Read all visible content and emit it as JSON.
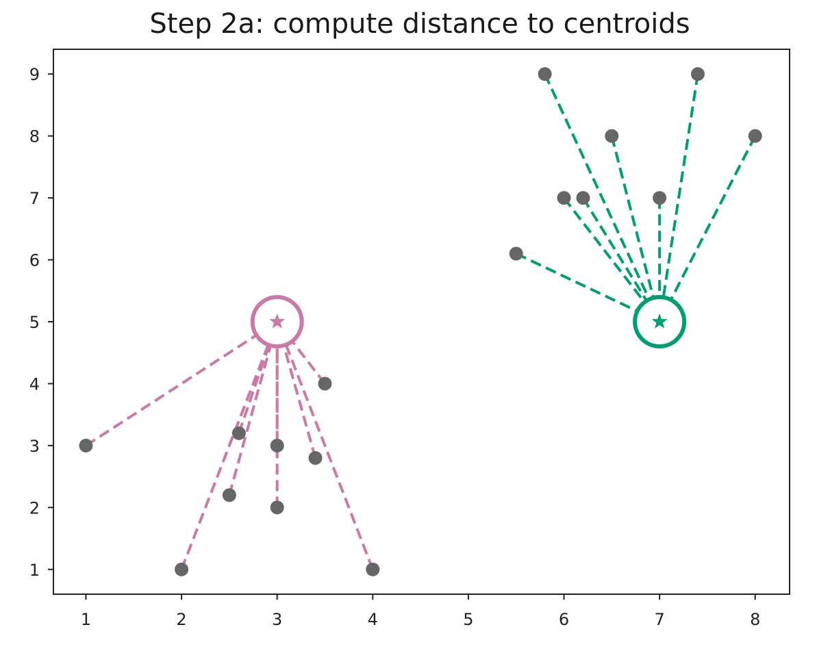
{
  "chart_data": {
    "type": "scatter",
    "title": "Step 2a: compute distance to centroids",
    "xlabel": "",
    "ylabel": "",
    "xlim": [
      0.66,
      8.36
    ],
    "ylim": [
      0.6,
      9.4
    ],
    "xticks": [
      1,
      2,
      3,
      4,
      5,
      6,
      7,
      8
    ],
    "yticks": [
      1,
      2,
      3,
      4,
      5,
      6,
      7,
      8,
      9
    ],
    "grid": false,
    "points": [
      {
        "x": 1,
        "y": 3,
        "cluster": 0
      },
      {
        "x": 2,
        "y": 1,
        "cluster": 0
      },
      {
        "x": 2.5,
        "y": 2.2,
        "cluster": 0
      },
      {
        "x": 2.6,
        "y": 3.2,
        "cluster": 0
      },
      {
        "x": 3,
        "y": 3,
        "cluster": 0
      },
      {
        "x": 3,
        "y": 2,
        "cluster": 0
      },
      {
        "x": 3.4,
        "y": 2.8,
        "cluster": 0
      },
      {
        "x": 3.5,
        "y": 4,
        "cluster": 0
      },
      {
        "x": 4,
        "y": 1,
        "cluster": 0
      },
      {
        "x": 5.5,
        "y": 6.1,
        "cluster": 1
      },
      {
        "x": 5.8,
        "y": 9,
        "cluster": 1
      },
      {
        "x": 6,
        "y": 7,
        "cluster": 1
      },
      {
        "x": 6.2,
        "y": 7,
        "cluster": 1
      },
      {
        "x": 6.5,
        "y": 8,
        "cluster": 1
      },
      {
        "x": 7,
        "y": 7,
        "cluster": 1
      },
      {
        "x": 7.4,
        "y": 9,
        "cluster": 1
      },
      {
        "x": 8,
        "y": 8,
        "cluster": 1
      }
    ],
    "centroids": [
      {
        "x": 3,
        "y": 5,
        "color": "#cc79a7"
      },
      {
        "x": 7,
        "y": 5,
        "color": "#009e73"
      }
    ],
    "point_color": "#666666"
  }
}
